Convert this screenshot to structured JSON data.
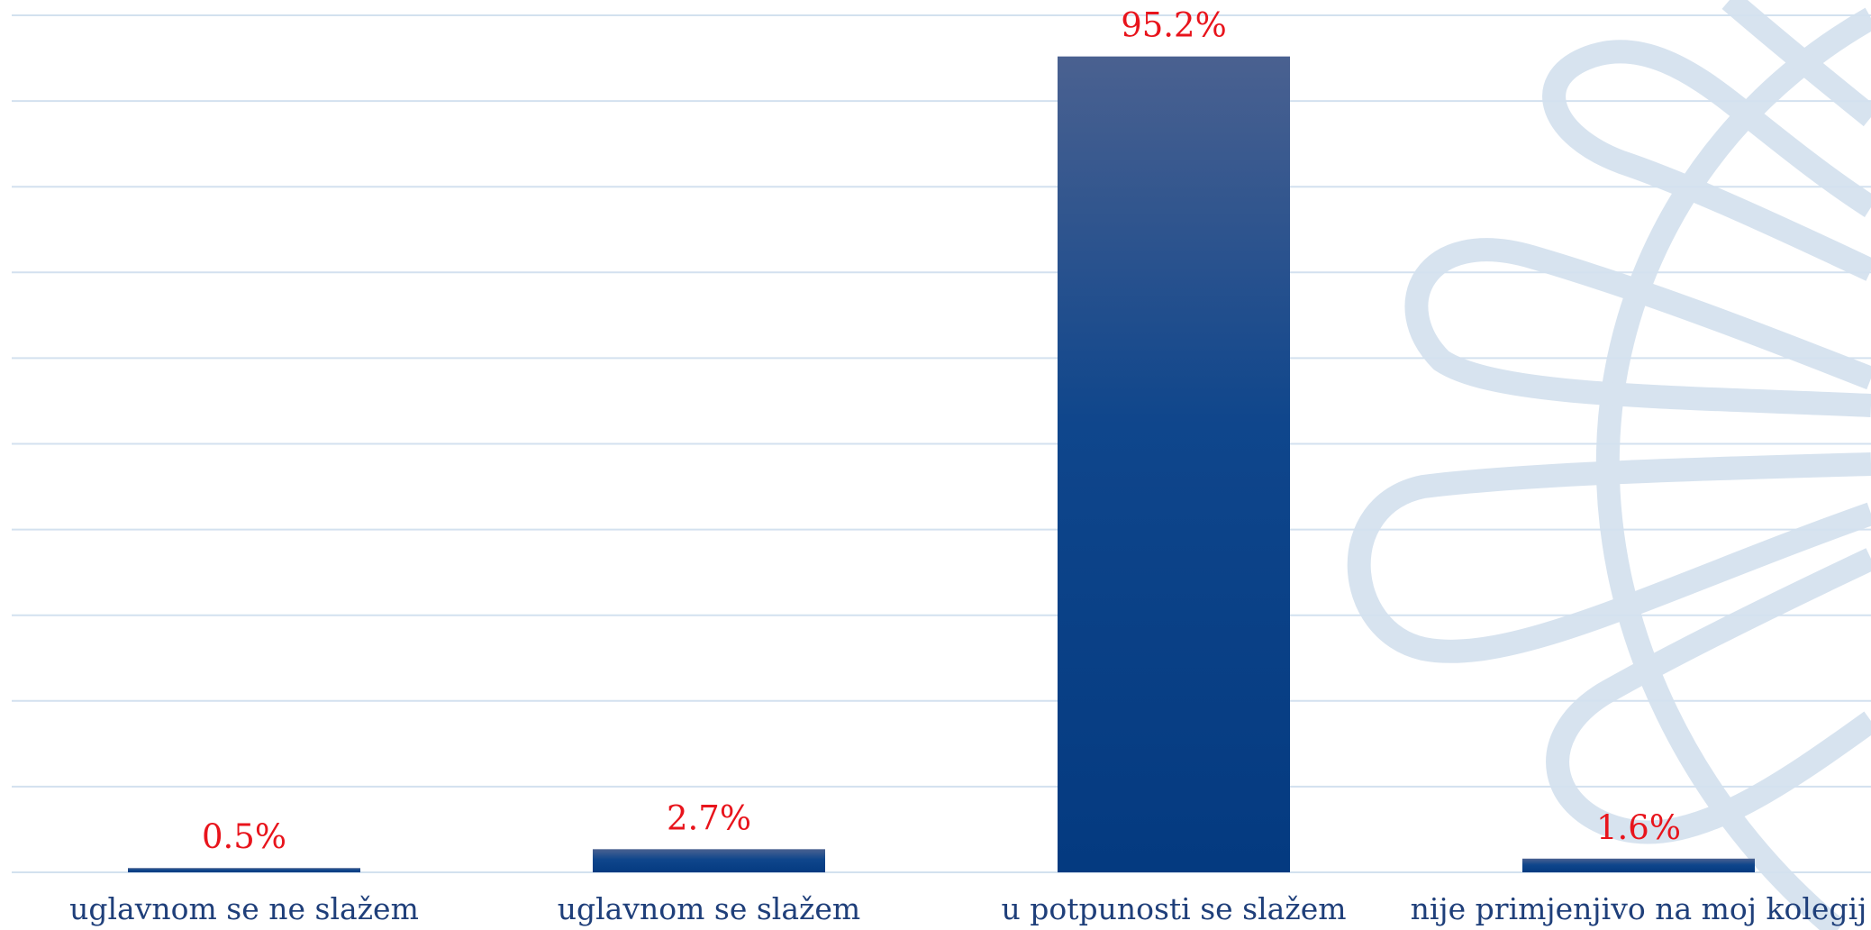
{
  "chart_data": {
    "type": "bar",
    "categories": [
      "uglavnom se ne slažem",
      "uglavnom se slažem",
      "u potpunosti se slažem",
      "nije primjenjivo na moj kolegij"
    ],
    "values": [
      0.5,
      2.7,
      95.2,
      1.6
    ],
    "value_labels": [
      "0.5%",
      "2.7%",
      "95.2%",
      "1.6%"
    ],
    "ylim": [
      0,
      100
    ],
    "yticks": [
      0,
      10,
      20,
      30,
      40,
      50,
      60,
      70,
      80,
      90,
      100
    ],
    "grid": true
  }
}
